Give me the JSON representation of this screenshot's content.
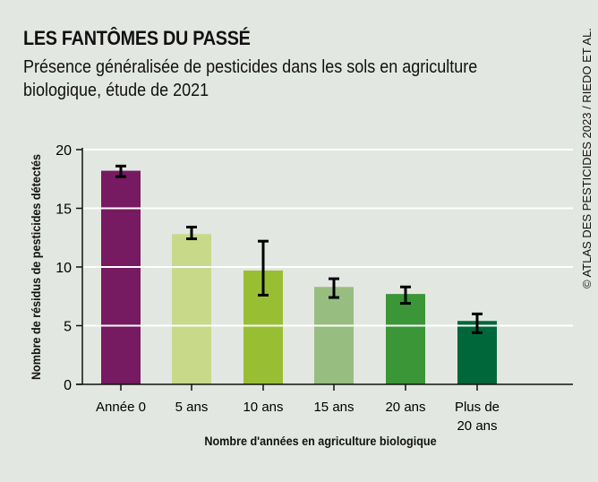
{
  "title": "LES FANTÔMES DU PASSÉ",
  "subtitle": "Présence généralisée de pesticides dans les sols en agriculture biologique, étude de 2021",
  "credit": "© ATLAS DES PESTICIDES 2023 / RIEDO ET AL.",
  "chart_data": {
    "type": "bar",
    "categories": [
      "Année 0",
      "5 ans",
      "10 ans",
      "15 ans",
      "20 ans",
      "Plus de 20 ans"
    ],
    "values": [
      18.2,
      12.8,
      9.7,
      8.3,
      7.7,
      5.4
    ],
    "error_low": [
      17.7,
      12.4,
      7.6,
      7.4,
      6.9,
      4.4
    ],
    "error_high": [
      18.6,
      13.4,
      12.2,
      9.0,
      8.3,
      6.0
    ],
    "colors": [
      "#761a62",
      "#c8d98a",
      "#98bf33",
      "#97bd80",
      "#3b9638",
      "#00673a"
    ],
    "xlabel": "Nombre d'années en agriculture biologique",
    "ylabel": "Nombre de résidus de pesticides détectés",
    "ylim": [
      0,
      20
    ],
    "yticks": [
      0,
      5,
      10,
      15,
      20
    ],
    "grid": true
  }
}
